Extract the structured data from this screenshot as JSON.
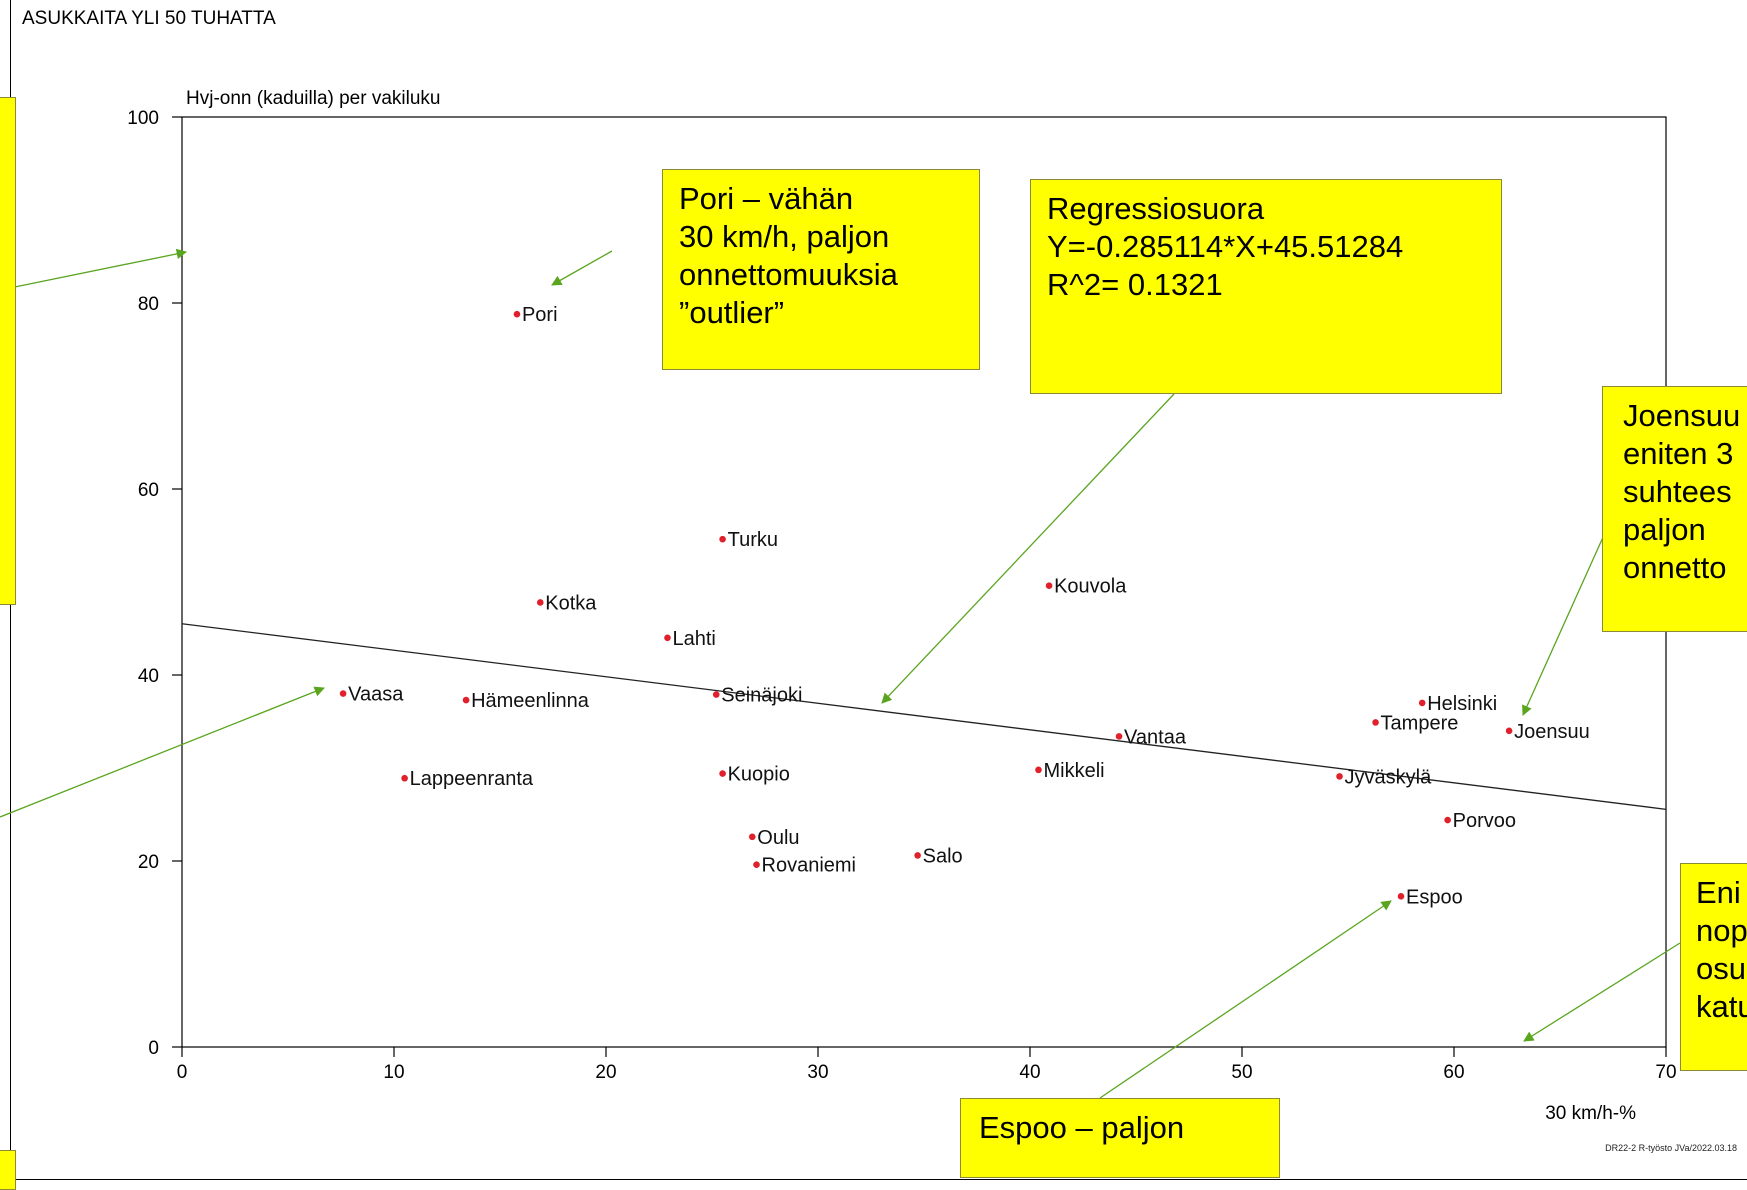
{
  "page": {
    "title": "ASUKKAITA YLI 50 TUHATTA",
    "footer": "DR22-2 R-työsto JVa/2022.03.18"
  },
  "chart_data": {
    "type": "scatter",
    "title": "",
    "xlabel": "30 km/h-%",
    "ylabel": "Hvj-onn (kaduilla) per vakiluku",
    "xlim": [
      0,
      70
    ],
    "ylim": [
      0,
      100
    ],
    "xticks": [
      "0",
      "10",
      "20",
      "30",
      "40",
      "50",
      "60",
      "70"
    ],
    "yticks": [
      "0",
      "20",
      "40",
      "60",
      "80",
      "100"
    ],
    "grid": false,
    "point_color": "#e0202a",
    "points": [
      {
        "label": "Pori",
        "x": 15.8,
        "y": 78.8
      },
      {
        "label": "Turku",
        "x": 25.5,
        "y": 54.6
      },
      {
        "label": "Kotka",
        "x": 16.9,
        "y": 47.8
      },
      {
        "label": "Lahti",
        "x": 22.9,
        "y": 44.0
      },
      {
        "label": "Kouvola",
        "x": 40.9,
        "y": 49.6
      },
      {
        "label": "Vaasa",
        "x": 7.6,
        "y": 38.0
      },
      {
        "label": "Hämeenlinna",
        "x": 13.4,
        "y": 37.3
      },
      {
        "label": "Seinäjoki",
        "x": 25.2,
        "y": 37.9
      },
      {
        "label": "Lappeenranta",
        "x": 10.5,
        "y": 28.9
      },
      {
        "label": "Kuopio",
        "x": 25.5,
        "y": 29.4
      },
      {
        "label": "Mikkeli",
        "x": 40.4,
        "y": 29.8
      },
      {
        "label": "Vantaa",
        "x": 44.2,
        "y": 33.4
      },
      {
        "label": "Oulu",
        "x": 26.9,
        "y": 22.6
      },
      {
        "label": "Rovaniemi",
        "x": 27.1,
        "y": 19.6
      },
      {
        "label": "Salo",
        "x": 34.7,
        "y": 20.6
      },
      {
        "label": "Helsinki",
        "x": 58.5,
        "y": 37.0
      },
      {
        "label": "Tampere",
        "x": 56.3,
        "y": 34.9
      },
      {
        "label": "Joensuu",
        "x": 62.6,
        "y": 34.0
      },
      {
        "label": "Jyväskylä",
        "x": 54.6,
        "y": 29.1
      },
      {
        "label": "Porvoo",
        "x": 59.7,
        "y": 24.4
      },
      {
        "label": "Espoo",
        "x": 57.5,
        "y": 16.2
      }
    ],
    "regression": {
      "slope": -0.285114,
      "intercept": 45.51284
    }
  },
  "annotations": [
    {
      "id": "pori",
      "text": "Pori – vähän\n30 km/h, paljon\nonnettomuuksia\n”outlier”"
    },
    {
      "id": "regression",
      "text": "Regressiosuora\nY=-0.285114*X+45.51284\nR^2= 0.1321"
    },
    {
      "id": "joensuu",
      "text": "Joensuu\neniten 3\nsuhtees\npaljon\nonnetto"
    },
    {
      "id": "enin",
      "text": "Eni\nnop\nosu\nkatu"
    },
    {
      "id": "espoo",
      "text": "Espoo – paljon"
    }
  ],
  "arrow_color": "#5aa51f"
}
